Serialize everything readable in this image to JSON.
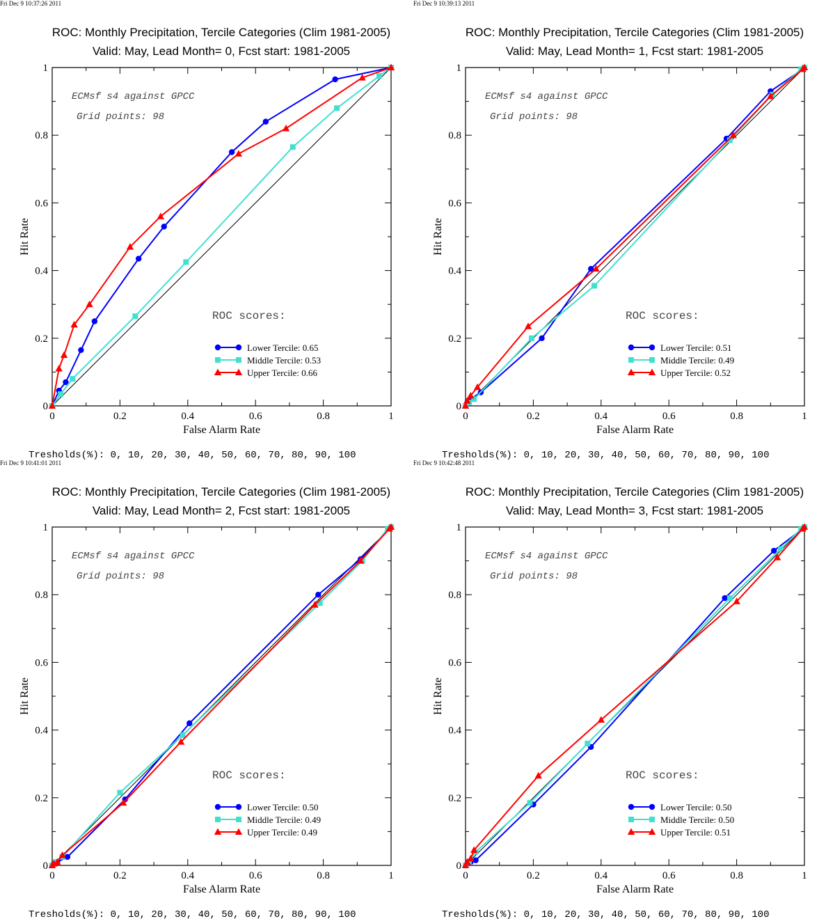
{
  "chart_data": [
    {
      "type": "line",
      "timestamp": "Fri Dec  9 10:37:26 2011",
      "title": "ROC: Monthly Precipitation, Tercile Categories (Clim 1981-2005)",
      "subtitle": "Valid: May, Lead Month= 0, Fcst start: 1981-2005",
      "xlabel": "False Alarm Rate",
      "ylabel": "Hit Rate",
      "xlim": [
        0,
        1
      ],
      "ylim": [
        0,
        1
      ],
      "xticks": [
        "0",
        "0.2",
        "0.4",
        "0.6",
        "0.8",
        "1"
      ],
      "yticks": [
        "0",
        "0.2",
        "0.4",
        "0.6",
        "0.8",
        "1"
      ],
      "annotation_line1": "ECMsf s4 against GPCC",
      "annotation_line2": "Grid points:   98",
      "scores_label": "ROC scores:",
      "legend_position": "lower-right",
      "thresholds": "Tresholds(%): 0, 10, 20, 30, 40, 50, 60, 70, 80, 90, 100",
      "series": [
        {
          "name": "Lower Tercile: 0.65",
          "color": "#0000ff",
          "marker": "circle",
          "x": [
            0,
            0.02,
            0.04,
            0.085,
            0.125,
            0.255,
            0.33,
            0.53,
            0.63,
            0.835,
            1
          ],
          "y": [
            0,
            0.045,
            0.07,
            0.165,
            0.25,
            0.435,
            0.53,
            0.75,
            0.84,
            0.965,
            1
          ]
        },
        {
          "name": "Middle Tercile: 0.53",
          "color": "#40e0d0",
          "marker": "square",
          "x": [
            0,
            0.025,
            0.06,
            0.245,
            0.395,
            0.71,
            0.84,
            0.965,
            1
          ],
          "y": [
            0,
            0.035,
            0.08,
            0.265,
            0.425,
            0.765,
            0.88,
            0.975,
            1
          ]
        },
        {
          "name": "Upper Tercile: 0.66",
          "color": "#ff0000",
          "marker": "triangle",
          "x": [
            0,
            0.02,
            0.035,
            0.065,
            0.11,
            0.23,
            0.32,
            0.55,
            0.69,
            0.915,
            1
          ],
          "y": [
            0,
            0.11,
            0.15,
            0.24,
            0.3,
            0.47,
            0.56,
            0.745,
            0.82,
            0.97,
            1
          ]
        }
      ]
    },
    {
      "type": "line",
      "timestamp": "Fri Dec  9 10:39:13 2011",
      "title": "ROC: Monthly Precipitation, Tercile Categories (Clim 1981-2005)",
      "subtitle": "Valid: May, Lead Month= 1, Fcst start: 1981-2005",
      "xlabel": "False Alarm Rate",
      "ylabel": "Hit Rate",
      "xlim": [
        0,
        1
      ],
      "ylim": [
        0,
        1
      ],
      "xticks": [
        "0",
        "0.2",
        "0.4",
        "0.6",
        "0.8",
        "1"
      ],
      "yticks": [
        "0",
        "0.2",
        "0.4",
        "0.6",
        "0.8",
        "1"
      ],
      "annotation_line1": "ECMsf s4 against GPCC",
      "annotation_line2": "Grid points:   98",
      "scores_label": "ROC scores:",
      "legend_position": "lower-right",
      "thresholds": "Tresholds(%): 0, 10, 20, 30, 40, 50, 60, 70, 80, 90, 100",
      "series": [
        {
          "name": "Lower Tercile: 0.51",
          "color": "#0000ff",
          "marker": "circle",
          "x": [
            0,
            0.005,
            0.015,
            0.045,
            0.225,
            0.37,
            0.77,
            0.9,
            0.995,
            1
          ],
          "y": [
            0,
            0.01,
            0.02,
            0.04,
            0.2,
            0.405,
            0.79,
            0.93,
            0.995,
            1
          ]
        },
        {
          "name": "Middle Tercile: 0.49",
          "color": "#40e0d0",
          "marker": "square",
          "x": [
            0,
            0.01,
            0.025,
            0.195,
            0.38,
            0.78,
            0.905,
            0.99,
            1
          ],
          "y": [
            0,
            0.01,
            0.02,
            0.2,
            0.355,
            0.785,
            0.92,
            0.995,
            1
          ]
        },
        {
          "name": "Upper Tercile: 0.52",
          "color": "#ff0000",
          "marker": "triangle",
          "x": [
            0,
            0.005,
            0.015,
            0.035,
            0.185,
            0.385,
            0.79,
            0.9,
            0.995,
            1
          ],
          "y": [
            0,
            0.015,
            0.03,
            0.055,
            0.235,
            0.405,
            0.8,
            0.915,
            0.995,
            1
          ]
        }
      ]
    },
    {
      "type": "line",
      "timestamp": "Fri Dec  9 10:41:01 2011",
      "title": "ROC: Monthly Precipitation, Tercile Categories (Clim 1981-2005)",
      "subtitle": "Valid: May, Lead Month= 2, Fcst start: 1981-2005",
      "xlabel": "False Alarm Rate",
      "ylabel": "Hit Rate",
      "xlim": [
        0,
        1
      ],
      "ylim": [
        0,
        1
      ],
      "xticks": [
        "0",
        "0.2",
        "0.4",
        "0.6",
        "0.8",
        "1"
      ],
      "yticks": [
        "0",
        "0.2",
        "0.4",
        "0.6",
        "0.8",
        "1"
      ],
      "annotation_line1": "ECMsf s4 against GPCC",
      "annotation_line2": "Grid points:   98",
      "scores_label": "ROC scores:",
      "legend_position": "lower-right",
      "thresholds": "Tresholds(%): 0, 10, 20, 30, 40, 50, 60, 70, 80, 90, 100",
      "series": [
        {
          "name": "Lower Tercile: 0.50",
          "color": "#0000ff",
          "marker": "circle",
          "x": [
            0,
            0.005,
            0.015,
            0.045,
            0.215,
            0.405,
            0.785,
            0.91,
            0.995,
            1
          ],
          "y": [
            0,
            0.005,
            0.01,
            0.025,
            0.195,
            0.42,
            0.8,
            0.905,
            0.995,
            1
          ]
        },
        {
          "name": "Middle Tercile: 0.49",
          "color": "#40e0d0",
          "marker": "square",
          "x": [
            0,
            0.01,
            0.03,
            0.2,
            0.385,
            0.79,
            0.915,
            0.99,
            1
          ],
          "y": [
            0,
            0.01,
            0.025,
            0.215,
            0.385,
            0.775,
            0.9,
            0.995,
            1
          ]
        },
        {
          "name": "Upper Tercile: 0.49",
          "color": "#ff0000",
          "marker": "triangle",
          "x": [
            0,
            0.005,
            0.015,
            0.03,
            0.21,
            0.38,
            0.775,
            0.91,
            0.995,
            1
          ],
          "y": [
            0,
            0.005,
            0.01,
            0.03,
            0.185,
            0.365,
            0.77,
            0.9,
            0.995,
            1
          ]
        }
      ]
    },
    {
      "type": "line",
      "timestamp": "Fri Dec  9 10:42:48 2011",
      "title": "ROC: Monthly Precipitation, Tercile Categories (Clim 1981-2005)",
      "subtitle": "Valid: May, Lead Month= 3, Fcst start: 1981-2005",
      "xlabel": "False Alarm Rate",
      "ylabel": "Hit Rate",
      "xlim": [
        0,
        1
      ],
      "ylim": [
        0,
        1
      ],
      "xticks": [
        "0",
        "0.2",
        "0.4",
        "0.6",
        "0.8",
        "1"
      ],
      "yticks": [
        "0",
        "0.2",
        "0.4",
        "0.6",
        "0.8",
        "1"
      ],
      "annotation_line1": "ECMsf s4 against GPCC",
      "annotation_line2": "Grid points:   98",
      "scores_label": "ROC scores:",
      "legend_position": "lower-right",
      "thresholds": "Tresholds(%): 0, 10, 20, 30, 40, 50, 60, 70, 80, 90, 100",
      "series": [
        {
          "name": "Lower Tercile: 0.50",
          "color": "#0000ff",
          "marker": "circle",
          "x": [
            0,
            0.005,
            0.015,
            0.03,
            0.2,
            0.37,
            0.765,
            0.91,
            0.995,
            1
          ],
          "y": [
            0,
            0.005,
            0.01,
            0.015,
            0.18,
            0.35,
            0.79,
            0.93,
            0.995,
            1
          ]
        },
        {
          "name": "Middle Tercile: 0.50",
          "color": "#40e0d0",
          "marker": "square",
          "x": [
            0,
            0.01,
            0.03,
            0.19,
            0.36,
            0.78,
            0.93,
            0.99,
            1
          ],
          "y": [
            0,
            0.01,
            0.04,
            0.185,
            0.36,
            0.79,
            0.935,
            0.995,
            1
          ]
        },
        {
          "name": "Upper Tercile: 0.51",
          "color": "#ff0000",
          "marker": "triangle",
          "x": [
            0,
            0.005,
            0.015,
            0.025,
            0.215,
            0.4,
            0.8,
            0.92,
            0.995,
            1
          ],
          "y": [
            0,
            0.01,
            0.02,
            0.045,
            0.265,
            0.43,
            0.78,
            0.91,
            0.995,
            1
          ]
        }
      ]
    }
  ]
}
